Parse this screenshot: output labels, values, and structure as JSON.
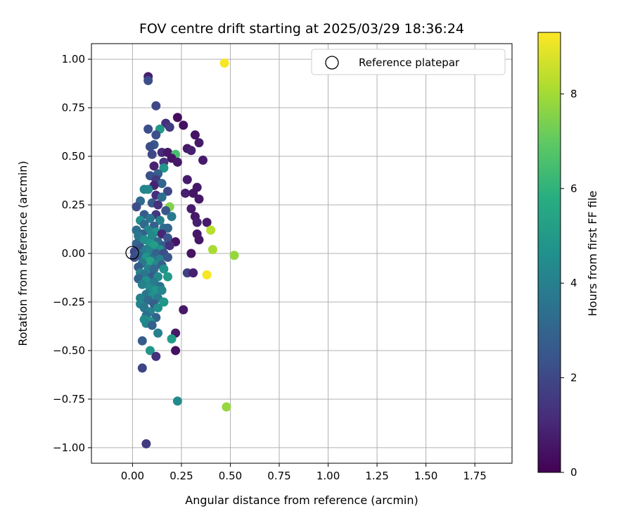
{
  "chart_data": {
    "type": "scatter",
    "title": "FOV centre drift starting at 2025/03/29 18:36:24",
    "xlabel": "Angular distance from reference (arcmin)",
    "ylabel": "Rotation from reference (arcmin)",
    "xlim": [
      -0.21,
      1.94
    ],
    "ylim": [
      -1.08,
      1.08
    ],
    "xticks": [
      "0.00",
      "0.25",
      "0.50",
      "0.75",
      "1.00",
      "1.25",
      "1.50",
      "1.75"
    ],
    "yticks": [
      "−1.00",
      "−0.75",
      "−0.50",
      "−0.25",
      "0.00",
      "0.25",
      "0.50",
      "0.75",
      "1.00"
    ],
    "grid": true,
    "legend": {
      "position": "top-right",
      "entries": [
        "Reference platepar"
      ]
    },
    "reference_point": {
      "x": 0.0,
      "y": 0.0,
      "label": "Reference platepar"
    },
    "colorbar": {
      "label": "Hours from first FF file",
      "min": 0,
      "max": 9.3,
      "ticks": [
        "0",
        "2",
        "4",
        "6",
        "8"
      ],
      "colormap": "viridis"
    },
    "points": [
      {
        "x": 0.08,
        "y": 0.91,
        "h": 0.8
      },
      {
        "x": 0.08,
        "y": 0.89,
        "h": 2.2
      },
      {
        "x": 0.47,
        "y": 0.98,
        "h": 9.2
      },
      {
        "x": 0.12,
        "y": 0.76,
        "h": 2.0
      },
      {
        "x": 0.23,
        "y": 0.7,
        "h": 0.3
      },
      {
        "x": 0.26,
        "y": 0.66,
        "h": 0.4
      },
      {
        "x": 0.17,
        "y": 0.67,
        "h": 1.2
      },
      {
        "x": 0.19,
        "y": 0.65,
        "h": 1.6
      },
      {
        "x": 0.08,
        "y": 0.64,
        "h": 2.2
      },
      {
        "x": 0.14,
        "y": 0.64,
        "h": 5.0
      },
      {
        "x": 0.12,
        "y": 0.61,
        "h": 2.3
      },
      {
        "x": 0.32,
        "y": 0.61,
        "h": 0.5
      },
      {
        "x": 0.34,
        "y": 0.57,
        "h": 0.7
      },
      {
        "x": 0.11,
        "y": 0.56,
        "h": 2.6
      },
      {
        "x": 0.09,
        "y": 0.55,
        "h": 2.2
      },
      {
        "x": 0.28,
        "y": 0.54,
        "h": 0.6
      },
      {
        "x": 0.3,
        "y": 0.53,
        "h": 0.8
      },
      {
        "x": 0.15,
        "y": 0.52,
        "h": 1.1
      },
      {
        "x": 0.18,
        "y": 0.52,
        "h": 0.6
      },
      {
        "x": 0.22,
        "y": 0.51,
        "h": 6.5
      },
      {
        "x": 0.1,
        "y": 0.51,
        "h": 2.0
      },
      {
        "x": 0.2,
        "y": 0.49,
        "h": 0.5
      },
      {
        "x": 0.36,
        "y": 0.48,
        "h": 0.7
      },
      {
        "x": 0.16,
        "y": 0.47,
        "h": 1.4
      },
      {
        "x": 0.23,
        "y": 0.47,
        "h": 0.6
      },
      {
        "x": 0.11,
        "y": 0.45,
        "h": 0.9
      },
      {
        "x": 0.16,
        "y": 0.44,
        "h": 4.8
      },
      {
        "x": 0.13,
        "y": 0.41,
        "h": 2.8
      },
      {
        "x": 0.09,
        "y": 0.4,
        "h": 2.3
      },
      {
        "x": 0.12,
        "y": 0.38,
        "h": 1.6
      },
      {
        "x": 0.28,
        "y": 0.38,
        "h": 0.7
      },
      {
        "x": 0.15,
        "y": 0.36,
        "h": 3.0
      },
      {
        "x": 0.11,
        "y": 0.35,
        "h": 0.9
      },
      {
        "x": 0.33,
        "y": 0.34,
        "h": 0.6
      },
      {
        "x": 0.08,
        "y": 0.33,
        "h": 4.4
      },
      {
        "x": 0.06,
        "y": 0.33,
        "h": 4.2
      },
      {
        "x": 0.18,
        "y": 0.32,
        "h": 2.0
      },
      {
        "x": 0.27,
        "y": 0.31,
        "h": 0.8
      },
      {
        "x": 0.31,
        "y": 0.31,
        "h": 0.5
      },
      {
        "x": 0.12,
        "y": 0.3,
        "h": 1.2
      },
      {
        "x": 0.15,
        "y": 0.29,
        "h": 3.4
      },
      {
        "x": 0.34,
        "y": 0.28,
        "h": 0.6
      },
      {
        "x": 0.04,
        "y": 0.27,
        "h": 3.2
      },
      {
        "x": 0.1,
        "y": 0.26,
        "h": 2.6
      },
      {
        "x": 0.13,
        "y": 0.25,
        "h": 1.3
      },
      {
        "x": 0.02,
        "y": 0.24,
        "h": 2.2
      },
      {
        "x": 0.19,
        "y": 0.24,
        "h": 7.5
      },
      {
        "x": 0.3,
        "y": 0.23,
        "h": 0.7
      },
      {
        "x": 0.17,
        "y": 0.22,
        "h": 2.5
      },
      {
        "x": 0.06,
        "y": 0.2,
        "h": 2.7
      },
      {
        "x": 0.12,
        "y": 0.2,
        "h": 1.5
      },
      {
        "x": 0.2,
        "y": 0.19,
        "h": 3.8
      },
      {
        "x": 0.32,
        "y": 0.19,
        "h": 0.6
      },
      {
        "x": 0.09,
        "y": 0.18,
        "h": 3.6
      },
      {
        "x": 0.04,
        "y": 0.17,
        "h": 4.6
      },
      {
        "x": 0.14,
        "y": 0.17,
        "h": 4.0
      },
      {
        "x": 0.33,
        "y": 0.16,
        "h": 0.8
      },
      {
        "x": 0.38,
        "y": 0.16,
        "h": 0.7
      },
      {
        "x": 0.06,
        "y": 0.15,
        "h": 3.2
      },
      {
        "x": 0.11,
        "y": 0.14,
        "h": 2.8
      },
      {
        "x": 0.16,
        "y": 0.13,
        "h": 3.4
      },
      {
        "x": 0.18,
        "y": 0.13,
        "h": 3.0
      },
      {
        "x": 0.02,
        "y": 0.12,
        "h": 3.4
      },
      {
        "x": 0.08,
        "y": 0.12,
        "h": 4.2
      },
      {
        "x": 0.4,
        "y": 0.12,
        "h": 8.3
      },
      {
        "x": 0.12,
        "y": 0.11,
        "h": 4.8
      },
      {
        "x": 0.05,
        "y": 0.1,
        "h": 2.9
      },
      {
        "x": 0.15,
        "y": 0.1,
        "h": 1.0
      },
      {
        "x": 0.33,
        "y": 0.1,
        "h": 0.6
      },
      {
        "x": 0.03,
        "y": 0.09,
        "h": 3.6
      },
      {
        "x": 0.1,
        "y": 0.09,
        "h": 4.4
      },
      {
        "x": 0.18,
        "y": 0.08,
        "h": 2.4
      },
      {
        "x": 0.06,
        "y": 0.07,
        "h": 4.6
      },
      {
        "x": 0.13,
        "y": 0.06,
        "h": 3.2
      },
      {
        "x": 0.22,
        "y": 0.06,
        "h": 0.5
      },
      {
        "x": 0.34,
        "y": 0.07,
        "h": 0.6
      },
      {
        "x": 0.02,
        "y": 0.05,
        "h": 3.0
      },
      {
        "x": 0.09,
        "y": 0.05,
        "h": 4.8
      },
      {
        "x": 0.11,
        "y": 0.04,
        "h": 5.2
      },
      {
        "x": 0.16,
        "y": 0.04,
        "h": 2.6
      },
      {
        "x": 0.19,
        "y": 0.04,
        "h": 1.3
      },
      {
        "x": 0.04,
        "y": 0.03,
        "h": 2.5
      },
      {
        "x": 0.07,
        "y": 0.02,
        "h": 4.0
      },
      {
        "x": 0.14,
        "y": 0.02,
        "h": 4.6
      },
      {
        "x": 0.41,
        "y": 0.02,
        "h": 8.1
      },
      {
        "x": 0.01,
        "y": 0.01,
        "h": 2.0
      },
      {
        "x": 0.05,
        "y": 0.0,
        "h": 3.8
      },
      {
        "x": 0.09,
        "y": 0.01,
        "h": 4.2
      },
      {
        "x": 0.12,
        "y": 0.0,
        "h": 2.9
      },
      {
        "x": 0.16,
        "y": 0.0,
        "h": 2.2
      },
      {
        "x": 0.3,
        "y": 0.0,
        "h": 0.5
      },
      {
        "x": 0.52,
        "y": -0.01,
        "h": 7.8
      },
      {
        "x": 0.03,
        "y": -0.01,
        "h": 3.0
      },
      {
        "x": 0.07,
        "y": -0.02,
        "h": 4.8
      },
      {
        "x": 0.1,
        "y": -0.03,
        "h": 3.3
      },
      {
        "x": 0.14,
        "y": -0.03,
        "h": 4.0
      },
      {
        "x": 0.01,
        "y": -0.02,
        "h": 2.2
      },
      {
        "x": 0.18,
        "y": -0.02,
        "h": 2.5
      },
      {
        "x": 0.09,
        "y": -0.04,
        "h": 5.4
      },
      {
        "x": 0.05,
        "y": -0.05,
        "h": 3.8
      },
      {
        "x": 0.12,
        "y": -0.06,
        "h": 4.4
      },
      {
        "x": 0.15,
        "y": -0.06,
        "h": 2.8
      },
      {
        "x": 0.03,
        "y": -0.07,
        "h": 2.7
      },
      {
        "x": 0.08,
        "y": -0.08,
        "h": 4.0
      },
      {
        "x": 0.11,
        "y": -0.08,
        "h": 3.2
      },
      {
        "x": 0.16,
        "y": -0.08,
        "h": 4.6
      },
      {
        "x": 0.04,
        "y": -0.1,
        "h": 4.2
      },
      {
        "x": 0.28,
        "y": -0.1,
        "h": 1.8
      },
      {
        "x": 0.31,
        "y": -0.1,
        "h": 0.8
      },
      {
        "x": 0.38,
        "y": -0.11,
        "h": 9.2
      },
      {
        "x": 0.06,
        "y": -0.11,
        "h": 3.6
      },
      {
        "x": 0.1,
        "y": -0.12,
        "h": 2.6
      },
      {
        "x": 0.13,
        "y": -0.12,
        "h": 4.4
      },
      {
        "x": 0.18,
        "y": -0.12,
        "h": 5.0
      },
      {
        "x": 0.03,
        "y": -0.13,
        "h": 3.0
      },
      {
        "x": 0.07,
        "y": -0.14,
        "h": 4.6
      },
      {
        "x": 0.11,
        "y": -0.15,
        "h": 3.8
      },
      {
        "x": 0.05,
        "y": -0.16,
        "h": 4.0
      },
      {
        "x": 0.14,
        "y": -0.17,
        "h": 3.4
      },
      {
        "x": 0.09,
        "y": -0.18,
        "h": 4.4
      },
      {
        "x": 0.12,
        "y": -0.19,
        "h": 4.8
      },
      {
        "x": 0.15,
        "y": -0.19,
        "h": 4.2
      },
      {
        "x": 0.07,
        "y": -0.21,
        "h": 3.6
      },
      {
        "x": 0.1,
        "y": -0.22,
        "h": 4.6
      },
      {
        "x": 0.04,
        "y": -0.23,
        "h": 4.0
      },
      {
        "x": 0.13,
        "y": -0.23,
        "h": 3.8
      },
      {
        "x": 0.08,
        "y": -0.24,
        "h": 3.2
      },
      {
        "x": 0.16,
        "y": -0.25,
        "h": 4.8
      },
      {
        "x": 0.04,
        "y": -0.26,
        "h": 4.2
      },
      {
        "x": 0.11,
        "y": -0.26,
        "h": 2.8
      },
      {
        "x": 0.06,
        "y": -0.28,
        "h": 3.6
      },
      {
        "x": 0.13,
        "y": -0.28,
        "h": 4.6
      },
      {
        "x": 0.26,
        "y": -0.29,
        "h": 0.6
      },
      {
        "x": 0.09,
        "y": -0.3,
        "h": 4.0
      },
      {
        "x": 0.07,
        "y": -0.32,
        "h": 3.4
      },
      {
        "x": 0.12,
        "y": -0.33,
        "h": 3.0
      },
      {
        "x": 0.06,
        "y": -0.34,
        "h": 4.4
      },
      {
        "x": 0.09,
        "y": -0.35,
        "h": 4.8
      },
      {
        "x": 0.07,
        "y": -0.36,
        "h": 4.2
      },
      {
        "x": 0.1,
        "y": -0.37,
        "h": 2.9
      },
      {
        "x": 0.13,
        "y": -0.41,
        "h": 4.0
      },
      {
        "x": 0.22,
        "y": -0.41,
        "h": 0.6
      },
      {
        "x": 0.05,
        "y": -0.45,
        "h": 2.7
      },
      {
        "x": 0.2,
        "y": -0.44,
        "h": 5.0
      },
      {
        "x": 0.09,
        "y": -0.5,
        "h": 4.8
      },
      {
        "x": 0.22,
        "y": -0.5,
        "h": 0.4
      },
      {
        "x": 0.12,
        "y": -0.53,
        "h": 1.3
      },
      {
        "x": 0.05,
        "y": -0.59,
        "h": 1.9
      },
      {
        "x": 0.23,
        "y": -0.76,
        "h": 4.4
      },
      {
        "x": 0.48,
        "y": -0.79,
        "h": 7.8
      },
      {
        "x": 0.07,
        "y": -0.98,
        "h": 1.6
      }
    ]
  }
}
